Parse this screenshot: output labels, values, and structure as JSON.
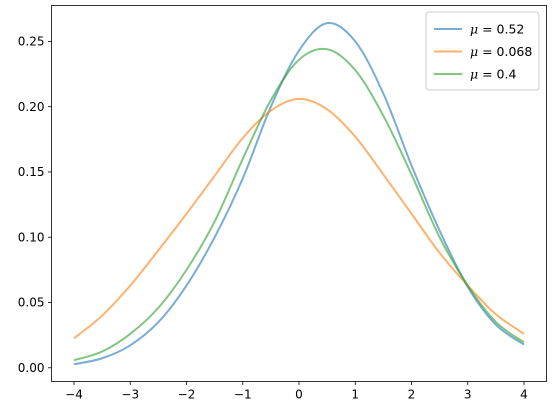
{
  "chart_data": {
    "type": "line",
    "title": "",
    "xlabel": "",
    "ylabel": "",
    "xlim": [
      -4.4,
      4.4
    ],
    "ylim": [
      -0.0105,
      0.2775
    ],
    "grid": false,
    "legend_position": "top-right",
    "x_ticks": [
      -4,
      -3,
      -2,
      -1,
      0,
      1,
      2,
      3,
      4
    ],
    "x_tick_labels": [
      "−4",
      "−3",
      "−2",
      "−1",
      "0",
      "1",
      "2",
      "3",
      "4"
    ],
    "y_ticks": [
      0.0,
      0.05,
      0.1,
      0.15,
      0.2,
      0.25
    ],
    "y_tick_labels": [
      "0.00",
      "0.05",
      "0.10",
      "0.15",
      "0.20",
      "0.25"
    ],
    "x": [
      -4,
      -3.5,
      -3,
      -2.5,
      -2,
      -1.5,
      -1,
      -0.5,
      0,
      0.5,
      1,
      1.5,
      2,
      2.5,
      3,
      3.5,
      4
    ],
    "series": [
      {
        "name": "μ = 0.52",
        "legend_symbol": "μ",
        "legend_value": "= 0.52",
        "color": "#1f77b4",
        "values": [
          0.0027,
          0.0073,
          0.0172,
          0.035,
          0.063,
          0.1,
          0.145,
          0.2,
          0.243,
          0.264,
          0.25,
          0.21,
          0.155,
          0.105,
          0.062,
          0.033,
          0.0178
        ]
      },
      {
        "name": "μ = 0.068",
        "legend_symbol": "μ",
        "legend_value": "= 0.068",
        "color": "#ff7f0e",
        "values": [
          0.0225,
          0.04,
          0.063,
          0.09,
          0.118,
          0.147,
          0.176,
          0.197,
          0.206,
          0.198,
          0.177,
          0.148,
          0.118,
          0.088,
          0.063,
          0.041,
          0.026
        ]
      },
      {
        "name": "μ = 0.4",
        "legend_symbol": "μ",
        "legend_value": "= 0.4",
        "color": "#2ca02c",
        "values": [
          0.0058,
          0.0125,
          0.026,
          0.046,
          0.075,
          0.112,
          0.16,
          0.205,
          0.236,
          0.244,
          0.228,
          0.193,
          0.148,
          0.1,
          0.063,
          0.035,
          0.0195
        ]
      }
    ]
  }
}
